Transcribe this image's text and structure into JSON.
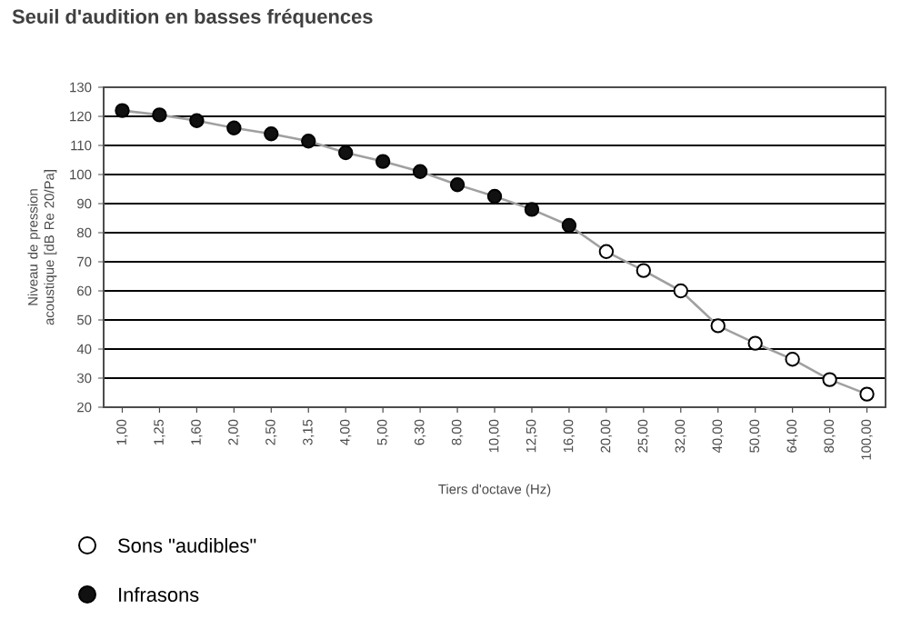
{
  "chart_data": {
    "type": "line",
    "title": "Seuil d'audition en basses fréquences",
    "xlabel": "Tiers d'octave (Hz)",
    "ylabel": "Niveau de pression acoustique [dB Re 20/Pa]",
    "categories": [
      "1,00",
      "1,25",
      "1,60",
      "2,00",
      "2,50",
      "3,15",
      "4,00",
      "5,00",
      "6,30",
      "8,00",
      "10,00",
      "12,50",
      "16,00",
      "20,00",
      "25,00",
      "32,00",
      "40,00",
      "50,00",
      "64,00",
      "80,00",
      "100,00"
    ],
    "series": [
      {
        "type": "line",
        "marker": "none",
        "color": "#a0a0a0",
        "values": [
          122,
          120.5,
          118.5,
          116,
          114,
          111.5,
          107.5,
          104.5,
          101,
          96.5,
          92.5,
          88,
          82.5,
          73.5,
          67,
          60,
          48,
          42,
          36.5,
          29.5,
          24.5
        ]
      },
      {
        "type": "scatter",
        "name": "Sons \"audibles\"",
        "color": "#ffffff",
        "values": [
          null,
          null,
          null,
          null,
          null,
          null,
          null,
          null,
          null,
          null,
          null,
          null,
          null,
          73.5,
          67,
          60,
          48,
          42,
          36.5,
          29.5,
          24.5
        ]
      },
      {
        "type": "scatter",
        "name": "Infrasons",
        "color": "#111111",
        "values": [
          122,
          120.5,
          118.5,
          116,
          114,
          111.5,
          107.5,
          104.5,
          101,
          96.5,
          92.5,
          88,
          82.5,
          null,
          null,
          null,
          null,
          null,
          null,
          null,
          null
        ]
      }
    ],
    "marker": "circle",
    "ylim": [
      20,
      130
    ],
    "yticks": [
      20,
      30,
      40,
      50,
      60,
      70,
      80,
      90,
      100,
      110,
      120,
      130
    ],
    "grid": "y",
    "legend": "bottom left"
  }
}
